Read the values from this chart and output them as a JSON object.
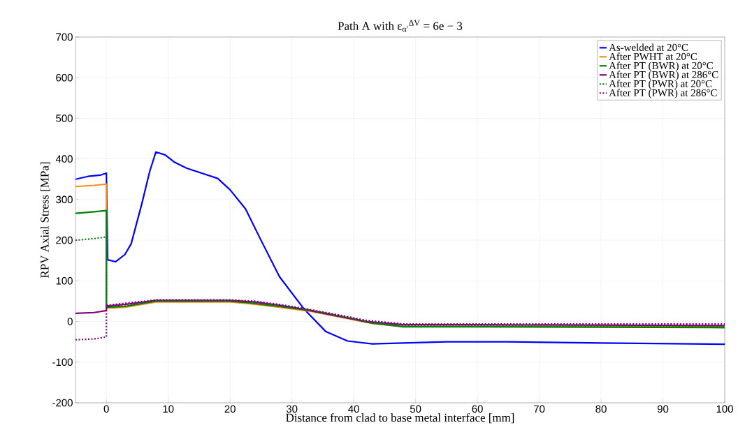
{
  "chart_data": {
    "type": "line",
    "title": "Path A with ε$_{α′}$$^{ΔV}$ = 6e − 3",
    "xlabel": "Distance from clad to base metal interface [mm]",
    "ylabel": "RPV Axial Stress [MPa]",
    "xlim": [
      -5,
      100
    ],
    "ylim": [
      -200,
      700
    ],
    "xticks": [
      0,
      10,
      20,
      30,
      40,
      50,
      60,
      70,
      80,
      90,
      100
    ],
    "yticks": [
      -200,
      -100,
      0,
      100,
      200,
      300,
      400,
      500,
      600,
      700
    ],
    "grid": true,
    "legend": "top right",
    "series": [
      {
        "name": "As-welded at 20°C",
        "color": "#0000ff",
        "line_style": "solid",
        "x": [
          -5,
          -3,
          -1,
          0,
          0.2,
          1.5,
          3,
          4,
          5.75,
          7,
          8,
          9.5,
          11,
          13,
          18,
          20,
          22.5,
          25,
          28,
          32,
          35.5,
          39,
          43,
          50,
          55,
          65,
          80,
          100
        ],
        "values": [
          350,
          357,
          360,
          365,
          152,
          147,
          165,
          191,
          291,
          369,
          417,
          410,
          392,
          377,
          352,
          324,
          277,
          200,
          110,
          30,
          -25,
          -48,
          -55,
          -52,
          -50,
          -50,
          -53,
          -56
        ]
      },
      {
        "name": "After PWHT at 20°C",
        "color": "#ff8c1a",
        "line_style": "solid",
        "x": [
          -5,
          -2,
          0,
          0,
          3,
          8,
          20,
          23,
          28,
          33,
          38,
          43,
          48,
          60,
          100
        ],
        "values": [
          332,
          335,
          338,
          33,
          35,
          48,
          48,
          44,
          35,
          25,
          10,
          -5,
          -12,
          -12,
          -13
        ]
      },
      {
        "name": "After PT (BWR) at 20°C",
        "color": "#008000",
        "line_style": "solid",
        "x": [
          -5,
          -2,
          0,
          0,
          3,
          8,
          20,
          23,
          28,
          33,
          38,
          43,
          48,
          60,
          100
        ],
        "values": [
          266,
          270,
          273,
          35,
          37,
          50,
          50,
          46,
          37,
          27,
          12,
          -4,
          -13,
          -13,
          -15
        ]
      },
      {
        "name": "After PT (BWR) at 286°C",
        "color": "#800080",
        "line_style": "solid",
        "x": [
          -5,
          -2,
          0,
          0,
          3,
          8,
          20,
          24,
          28,
          32,
          37,
          42,
          48,
          60,
          100
        ],
        "values": [
          20,
          22,
          27,
          38,
          42,
          52,
          52,
          48,
          40,
          30,
          15,
          0,
          -8,
          -8,
          -10
        ]
      },
      {
        "name": "After PT (PWR) at 20°C",
        "color": "#008000",
        "line_style": "dotted",
        "x": [
          -5,
          -2,
          0,
          0,
          3,
          8,
          20,
          23,
          28,
          33,
          38,
          43,
          48,
          60,
          100
        ],
        "values": [
          200,
          204,
          208,
          35,
          38,
          51,
          51,
          47,
          38,
          28,
          13,
          -3,
          -11,
          -11,
          -13
        ]
      },
      {
        "name": "After PT (PWR) at 286°C",
        "color": "#800080",
        "line_style": "dotted",
        "x": [
          -5,
          -2,
          0,
          0,
          3,
          8,
          20,
          24,
          28,
          32,
          37,
          42,
          48,
          60,
          100
        ],
        "values": [
          -45,
          -43,
          -38,
          40,
          45,
          53,
          53,
          50,
          42,
          32,
          18,
          3,
          -6,
          -6,
          -6
        ]
      }
    ]
  }
}
